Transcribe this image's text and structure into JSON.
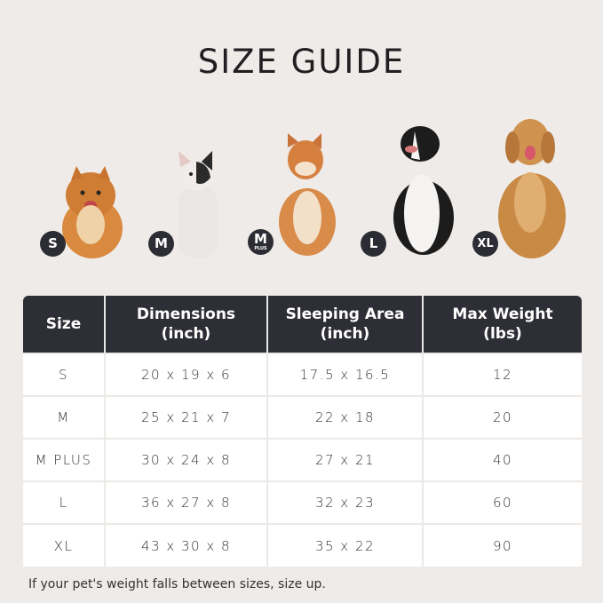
{
  "title": "SIZE GUIDE",
  "dogs": [
    {
      "badge": "S",
      "sub": "",
      "color": "#d98a3f"
    },
    {
      "badge": "M",
      "sub": "",
      "color": "#e8e4e0"
    },
    {
      "badge": "M",
      "sub": "PLUS",
      "color": "#d98b4a"
    },
    {
      "badge": "L",
      "sub": "",
      "color": "#1c1c1c"
    },
    {
      "badge": "XL",
      "sub": "",
      "color": "#c98a45"
    }
  ],
  "table": {
    "headers": [
      [
        "Size",
        ""
      ],
      [
        "Dimensions",
        "(inch)"
      ],
      [
        "Sleeping Area",
        "(inch)"
      ],
      [
        "Max Weight",
        "(lbs)"
      ]
    ],
    "rows": [
      [
        "S",
        "20 x 19 x 6",
        "17.5 x 16.5",
        "12"
      ],
      [
        "M",
        "25 x 21 x 7",
        "22 x 18",
        "20"
      ],
      [
        "M PLUS",
        "30 x 24 x 8",
        "27 x 21",
        "40"
      ],
      [
        "L",
        "36 x 27 x 8",
        "32 x 23",
        "60"
      ],
      [
        "XL",
        "43 x 30 x 8",
        "35 x 22",
        "90"
      ]
    ]
  },
  "note": "If your pet's weight falls between sizes, size up."
}
